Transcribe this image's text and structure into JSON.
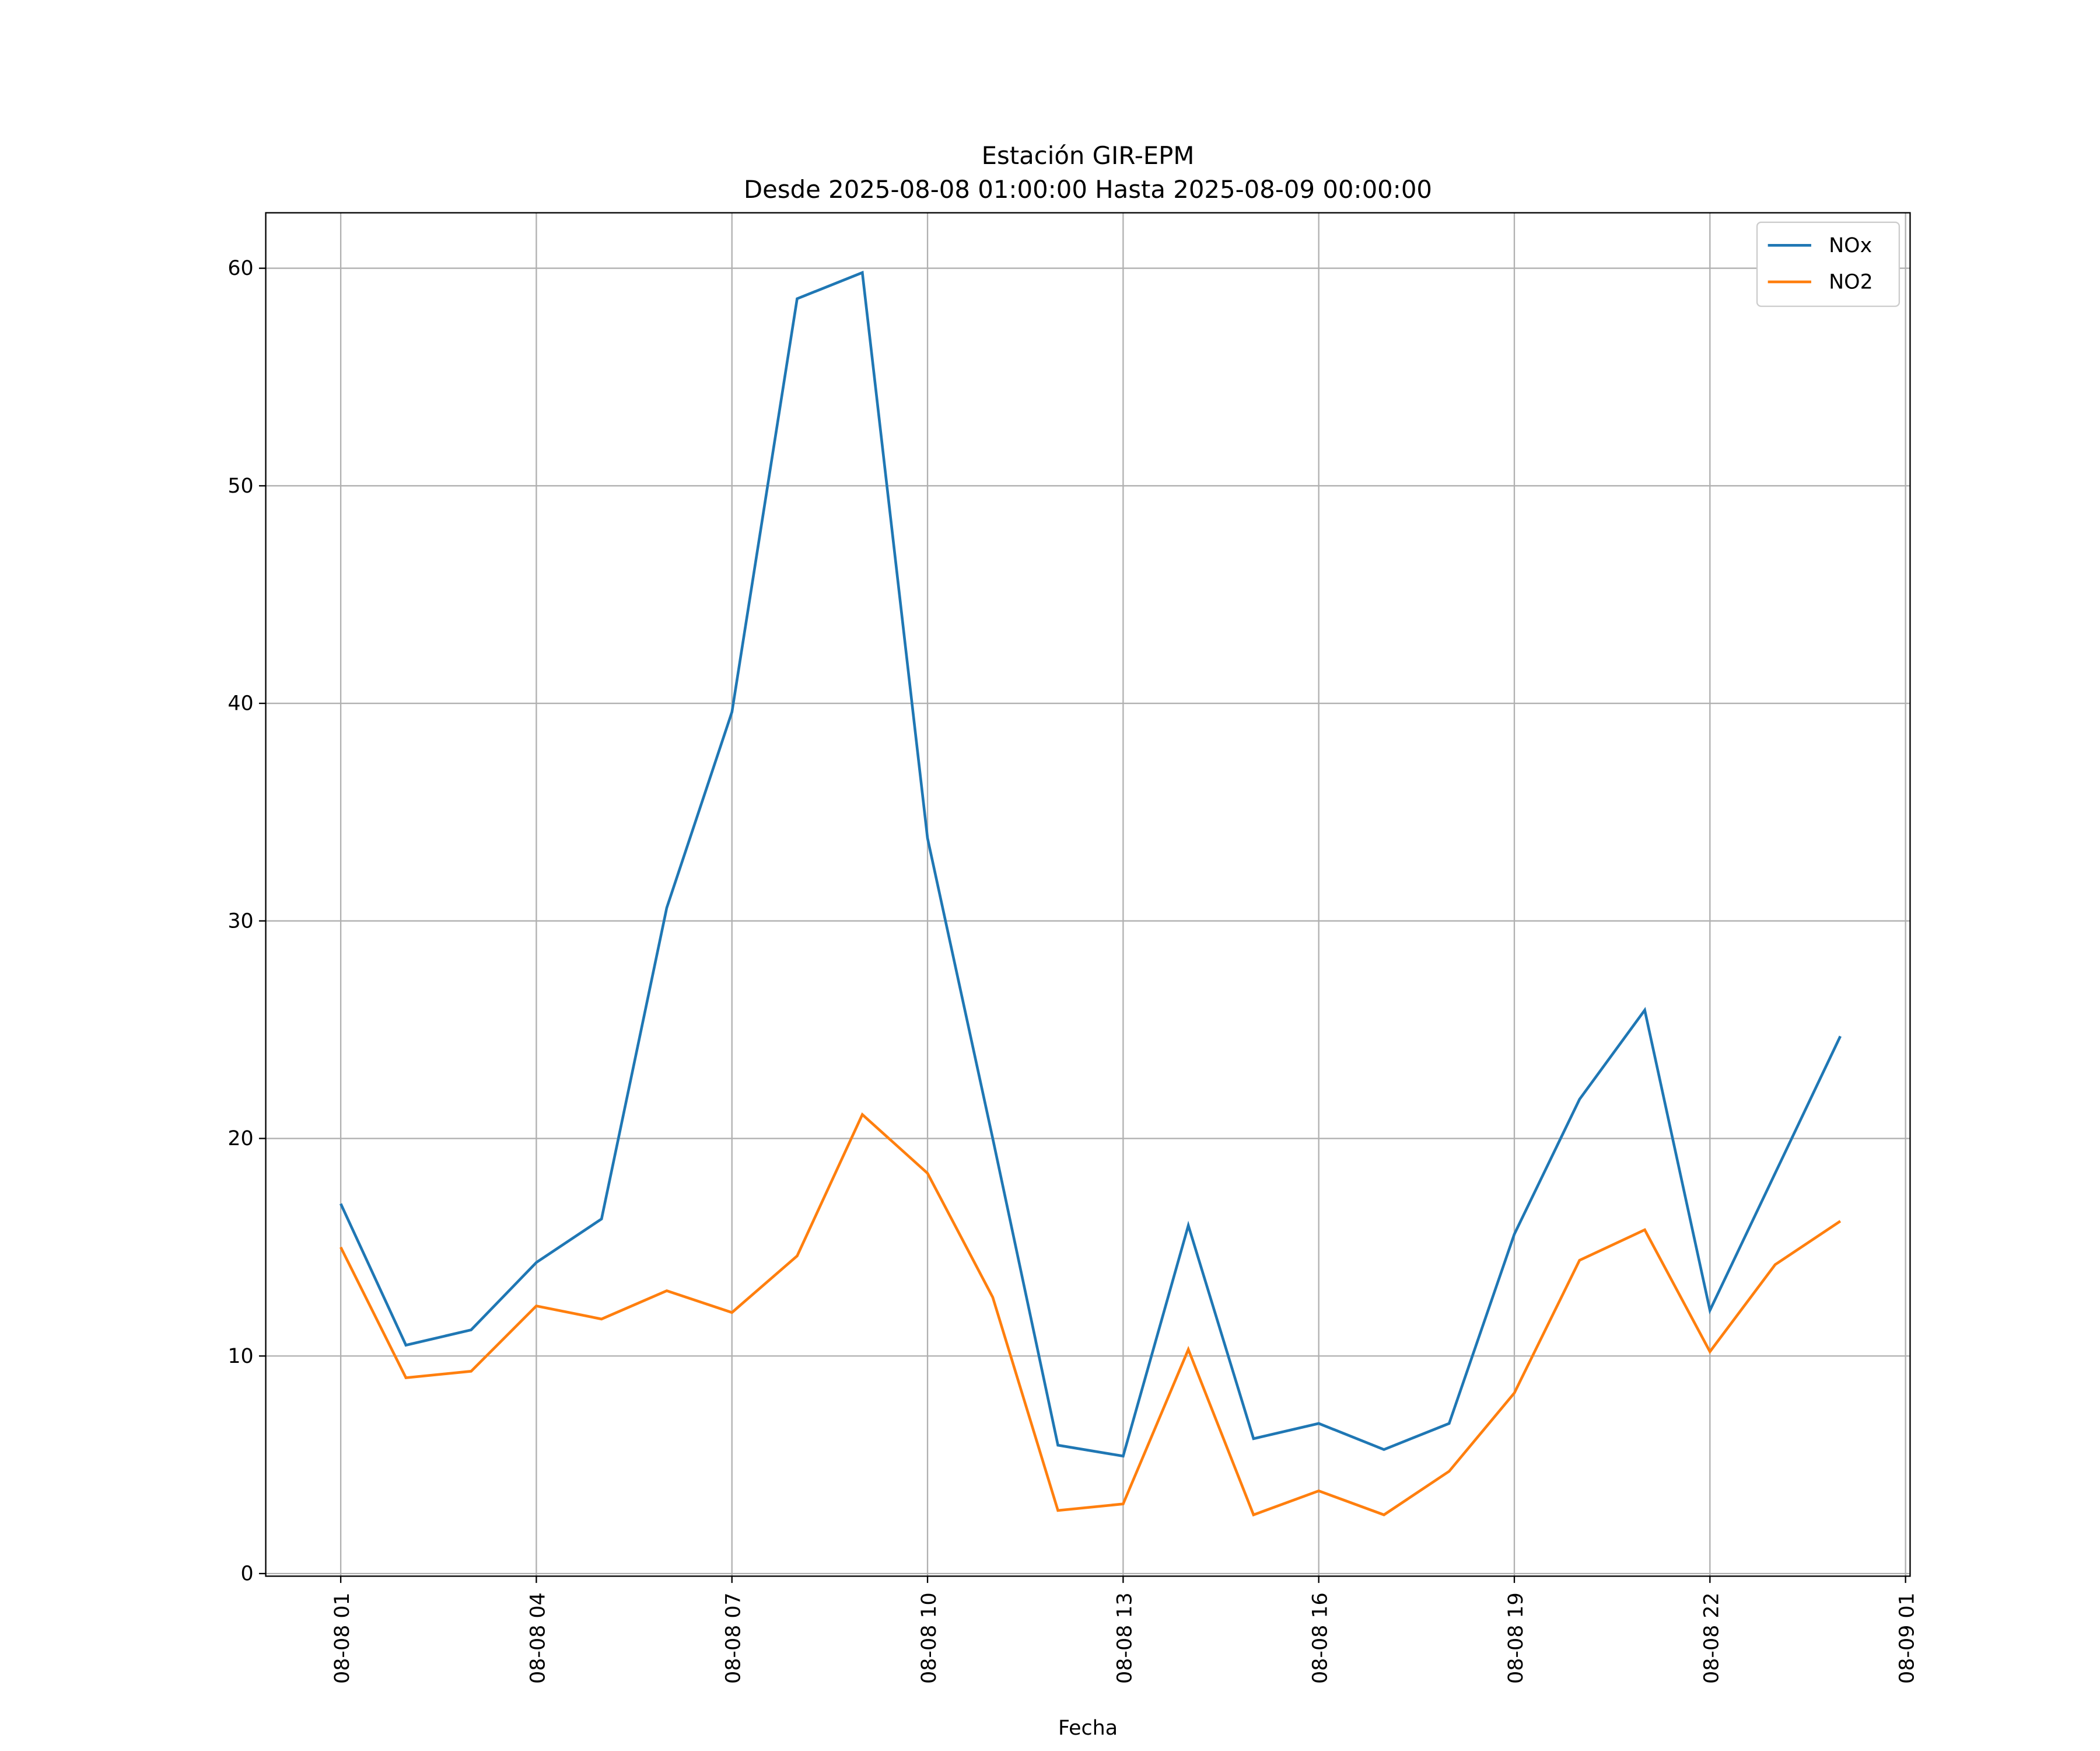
{
  "chart_data": {
    "type": "line",
    "title": "Estación GIR-EPM",
    "subtitle": "Desde 2025-08-08 01:00:00 Hasta 2025-08-09 00:00:00",
    "xlabel": "Fecha",
    "ylabel": "",
    "x_hours_from_2025_08_08_00": [
      1,
      2,
      3,
      4,
      5,
      6,
      7,
      8,
      9,
      10,
      11,
      12,
      13,
      14,
      15,
      16,
      17,
      18,
      19,
      20,
      21,
      22,
      23,
      24
    ],
    "xlim": [
      -0.15,
      25.07
    ],
    "ylim": [
      -0.12,
      62.55
    ],
    "x_ticks": [
      1,
      4,
      7,
      10,
      13,
      16,
      19,
      22,
      25
    ],
    "x_tick_labels": [
      "08-08 01",
      "08-08 04",
      "08-08 07",
      "08-08 10",
      "08-08 13",
      "08-08 16",
      "08-08 19",
      "08-08 22",
      "08-09 01"
    ],
    "y_ticks": [
      0,
      10,
      20,
      30,
      40,
      50,
      60
    ],
    "y_tick_labels": [
      "0",
      "10",
      "20",
      "30",
      "40",
      "50",
      "60"
    ],
    "grid": true,
    "legend_position": "top-right",
    "series": [
      {
        "name": "NOx",
        "color": "#1f77b4",
        "values": [
          17.0,
          10.5,
          11.2,
          14.3,
          16.3,
          30.6,
          39.6,
          58.6,
          59.8,
          33.8,
          20.0,
          5.9,
          5.4,
          16.0,
          6.2,
          6.9,
          5.7,
          6.9,
          15.6,
          21.8,
          25.9,
          12.1,
          18.4,
          24.7
        ]
      },
      {
        "name": "NO2",
        "color": "#ff7f0e",
        "values": [
          15.0,
          9.0,
          9.3,
          12.3,
          11.7,
          13.0,
          12.0,
          14.6,
          21.1,
          18.4,
          12.7,
          2.9,
          3.2,
          10.3,
          2.7,
          3.8,
          2.7,
          4.7,
          8.3,
          14.4,
          15.8,
          10.2,
          14.2,
          16.2
        ]
      }
    ]
  }
}
